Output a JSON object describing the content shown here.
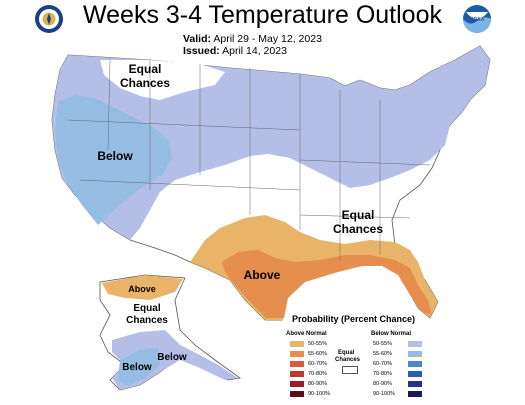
{
  "header": {
    "title": "Weeks 3-4 Temperature Outlook",
    "valid_label": "Valid:",
    "valid_value": "April 29 - May 12, 2023",
    "issued_label": "Issued:",
    "issued_value": "April 14, 2023",
    "left_logo_icon": "department-of-commerce-seal",
    "right_logo_icon": "noaa-logo",
    "right_logo_text": "NOAA"
  },
  "map": {
    "labels": {
      "equal_chances_north_1": "Equal",
      "equal_chances_north_2": "Chances",
      "below_west": "Below",
      "equal_chances_southeast_1": "Equal",
      "equal_chances_southeast_2": "Chances",
      "above_south": "Above",
      "alaska_above": "Above",
      "alaska_equal_1": "Equal",
      "alaska_equal_2": "Chances",
      "alaska_below_1": "Below",
      "alaska_below_2": "Below"
    },
    "colors": {
      "below_50_55": "#b4bee6",
      "below_55_60": "#95bde3",
      "above_50_55": "#e9b468",
      "above_55_60": "#e68e4d",
      "background": "#ffffff"
    }
  },
  "legend": {
    "title": "Probability (Percent Chance)",
    "above_header": "Above Normal",
    "below_header": "Below Normal",
    "equal_label_1": "Equal",
    "equal_label_2": "Chances",
    "above": [
      {
        "label": "50-55%",
        "color": "#e9b468"
      },
      {
        "label": "55-60%",
        "color": "#e68e4d"
      },
      {
        "label": "60-70%",
        "color": "#d95b3a"
      },
      {
        "label": "70-80%",
        "color": "#c0392b"
      },
      {
        "label": "80-90%",
        "color": "#9c1d2a"
      },
      {
        "label": "90-100%",
        "color": "#5c1010"
      }
    ],
    "below": [
      {
        "label": "50-55%",
        "color": "#b4bee6"
      },
      {
        "label": "55-60%",
        "color": "#95bde3"
      },
      {
        "label": "60-70%",
        "color": "#4f88c6"
      },
      {
        "label": "70-80%",
        "color": "#2a5fb0"
      },
      {
        "label": "80-90%",
        "color": "#27338a"
      },
      {
        "label": "90-100%",
        "color": "#1a1a5a"
      }
    ]
  }
}
